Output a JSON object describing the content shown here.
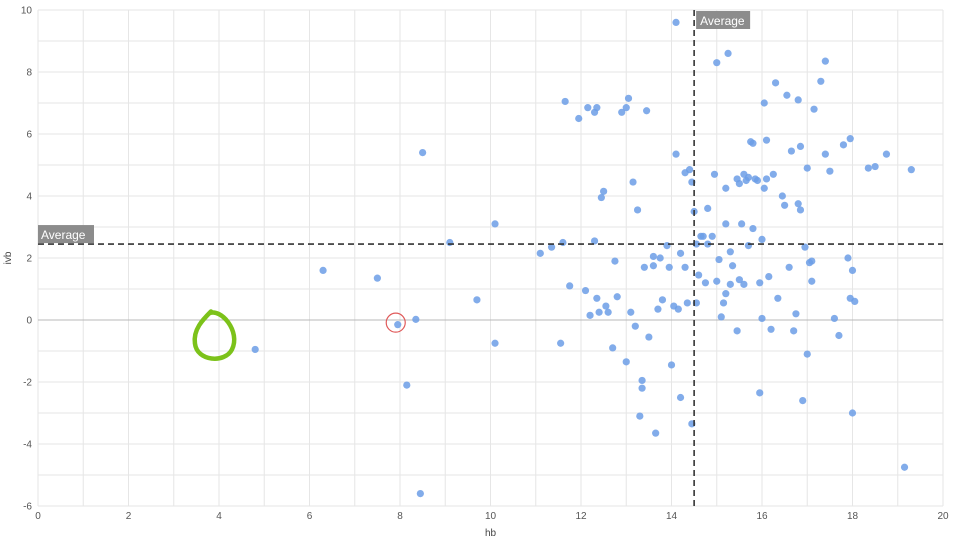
{
  "chart_data": {
    "type": "scatter",
    "xlabel": "hb",
    "ylabel": "ivb",
    "xlim": [
      0,
      20
    ],
    "ylim": [
      -6,
      10
    ],
    "x_ticks": [
      0,
      2,
      4,
      6,
      8,
      10,
      12,
      14,
      16,
      18,
      20
    ],
    "y_ticks": [
      -6,
      -4,
      -2,
      0,
      2,
      4,
      6,
      8,
      10
    ],
    "grid": true,
    "point_color": "#6c9ee6",
    "average_lines": {
      "label": "Average",
      "x": 14.5,
      "y": 2.45,
      "color": "#333333",
      "label_bg": "#8c8c8c"
    },
    "highlighted_point": {
      "x": 7.95,
      "y": -0.15,
      "ring_color": "#e05a5a"
    },
    "annotation_circle": {
      "x": 3.8,
      "y": -0.5,
      "color": "#7cc21a"
    },
    "points": [
      [
        4.8,
        -0.95
      ],
      [
        6.3,
        1.6
      ],
      [
        7.5,
        1.35
      ],
      [
        7.95,
        -0.15
      ],
      [
        8.35,
        0.02
      ],
      [
        8.15,
        -2.1
      ],
      [
        8.45,
        -5.6
      ],
      [
        8.5,
        5.4
      ],
      [
        9.1,
        2.5
      ],
      [
        9.7,
        0.65
      ],
      [
        10.1,
        3.1
      ],
      [
        10.1,
        -0.75
      ],
      [
        11.1,
        2.15
      ],
      [
        11.35,
        2.35
      ],
      [
        11.55,
        -0.75
      ],
      [
        11.65,
        7.05
      ],
      [
        11.6,
        2.5
      ],
      [
        11.75,
        1.1
      ],
      [
        11.95,
        6.5
      ],
      [
        12.1,
        0.95
      ],
      [
        12.15,
        6.85
      ],
      [
        12.2,
        0.15
      ],
      [
        12.3,
        2.55
      ],
      [
        12.3,
        6.7
      ],
      [
        12.35,
        6.85
      ],
      [
        12.35,
        0.7
      ],
      [
        12.4,
        0.25
      ],
      [
        12.45,
        3.95
      ],
      [
        12.5,
        4.15
      ],
      [
        12.55,
        0.45
      ],
      [
        12.6,
        0.25
      ],
      [
        12.7,
        -0.9
      ],
      [
        12.75,
        1.9
      ],
      [
        12.8,
        0.75
      ],
      [
        12.9,
        6.7
      ],
      [
        13.0,
        6.85
      ],
      [
        13.05,
        7.15
      ],
      [
        13.0,
        -1.35
      ],
      [
        13.1,
        0.25
      ],
      [
        13.15,
        4.45
      ],
      [
        13.2,
        -0.2
      ],
      [
        13.25,
        3.55
      ],
      [
        13.3,
        -3.1
      ],
      [
        13.35,
        -1.95
      ],
      [
        13.35,
        -2.2
      ],
      [
        13.4,
        1.7
      ],
      [
        13.45,
        6.75
      ],
      [
        13.5,
        -0.55
      ],
      [
        13.6,
        1.75
      ],
      [
        13.6,
        2.05
      ],
      [
        13.65,
        -3.65
      ],
      [
        13.7,
        0.35
      ],
      [
        13.75,
        2.0
      ],
      [
        13.8,
        0.65
      ],
      [
        13.9,
        2.4
      ],
      [
        13.95,
        1.7
      ],
      [
        14.0,
        -1.45
      ],
      [
        14.05,
        0.45
      ],
      [
        14.1,
        9.6
      ],
      [
        14.1,
        5.35
      ],
      [
        14.15,
        0.35
      ],
      [
        14.2,
        2.15
      ],
      [
        14.2,
        -2.5
      ],
      [
        14.3,
        1.7
      ],
      [
        14.3,
        4.75
      ],
      [
        14.35,
        0.55
      ],
      [
        14.4,
        4.85
      ],
      [
        14.45,
        4.45
      ],
      [
        14.45,
        -3.35
      ],
      [
        14.5,
        3.5
      ],
      [
        14.55,
        2.45
      ],
      [
        14.55,
        0.55
      ],
      [
        14.6,
        1.45
      ],
      [
        14.65,
        2.7
      ],
      [
        14.7,
        2.7
      ],
      [
        14.75,
        1.2
      ],
      [
        14.8,
        3.6
      ],
      [
        14.8,
        2.45
      ],
      [
        14.9,
        2.7
      ],
      [
        14.95,
        4.7
      ],
      [
        15.0,
        8.3
      ],
      [
        15.0,
        1.25
      ],
      [
        15.05,
        1.95
      ],
      [
        15.1,
        0.1
      ],
      [
        15.15,
        0.55
      ],
      [
        15.2,
        0.85
      ],
      [
        15.2,
        3.1
      ],
      [
        15.2,
        4.25
      ],
      [
        15.25,
        8.6
      ],
      [
        15.3,
        2.2
      ],
      [
        15.3,
        1.15
      ],
      [
        15.35,
        1.75
      ],
      [
        15.45,
        4.55
      ],
      [
        15.45,
        -0.35
      ],
      [
        15.5,
        4.4
      ],
      [
        15.5,
        1.3
      ],
      [
        15.55,
        3.1
      ],
      [
        15.6,
        4.7
      ],
      [
        15.6,
        1.15
      ],
      [
        15.65,
        4.5
      ],
      [
        15.7,
        4.6
      ],
      [
        15.7,
        2.4
      ],
      [
        15.75,
        5.75
      ],
      [
        15.8,
        5.7
      ],
      [
        15.8,
        2.95
      ],
      [
        15.85,
        4.55
      ],
      [
        15.9,
        4.5
      ],
      [
        15.95,
        -2.35
      ],
      [
        15.95,
        1.2
      ],
      [
        16.0,
        2.6
      ],
      [
        16.0,
        0.05
      ],
      [
        16.05,
        7.0
      ],
      [
        16.05,
        4.25
      ],
      [
        16.1,
        5.8
      ],
      [
        16.1,
        4.55
      ],
      [
        16.15,
        1.4
      ],
      [
        16.2,
        -0.3
      ],
      [
        16.25,
        4.7
      ],
      [
        16.3,
        7.65
      ],
      [
        16.35,
        0.7
      ],
      [
        16.45,
        4.0
      ],
      [
        16.5,
        3.7
      ],
      [
        16.55,
        7.25
      ],
      [
        16.6,
        1.7
      ],
      [
        16.65,
        5.45
      ],
      [
        16.7,
        -0.35
      ],
      [
        16.75,
        0.2
      ],
      [
        16.8,
        7.1
      ],
      [
        16.8,
        3.75
      ],
      [
        16.85,
        3.55
      ],
      [
        16.85,
        5.6
      ],
      [
        16.9,
        -2.6
      ],
      [
        16.95,
        2.35
      ],
      [
        17.0,
        -1.1
      ],
      [
        17.0,
        4.9
      ],
      [
        17.05,
        1.85
      ],
      [
        17.1,
        1.9
      ],
      [
        17.1,
        1.25
      ],
      [
        17.15,
        6.8
      ],
      [
        17.3,
        7.7
      ],
      [
        17.4,
        8.35
      ],
      [
        17.4,
        5.35
      ],
      [
        17.5,
        4.8
      ],
      [
        17.6,
        0.05
      ],
      [
        17.7,
        -0.5
      ],
      [
        17.8,
        5.65
      ],
      [
        17.9,
        2.0
      ],
      [
        17.95,
        5.85
      ],
      [
        17.95,
        0.7
      ],
      [
        18.0,
        1.6
      ],
      [
        18.0,
        -3.0
      ],
      [
        18.05,
        0.6
      ],
      [
        18.35,
        4.9
      ],
      [
        18.5,
        4.95
      ],
      [
        18.75,
        5.35
      ],
      [
        19.15,
        -4.75
      ],
      [
        19.3,
        4.85
      ]
    ]
  }
}
